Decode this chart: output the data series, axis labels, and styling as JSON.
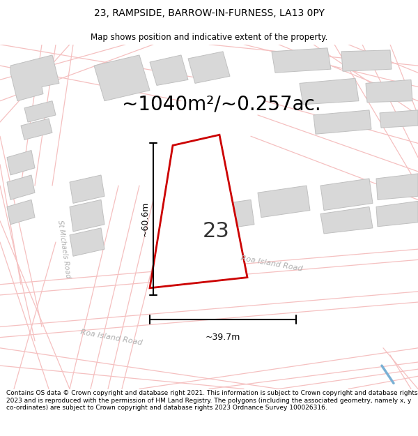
{
  "title": "23, RAMPSIDE, BARROW-IN-FURNESS, LA13 0PY",
  "subtitle": "Map shows position and indicative extent of the property.",
  "area_label": "~1040m²/~0.257ac.",
  "plot_number": "23",
  "width_label": "~39.7m",
  "height_label": "~60.6m",
  "footer": "Contains OS data © Crown copyright and database right 2021. This information is subject to Crown copyright and database rights 2023 and is reproduced with the permission of HM Land Registry. The polygons (including the associated geometry, namely x, y co-ordinates) are subject to Crown copyright and database rights 2023 Ordnance Survey 100026316.",
  "bg_color": "#ffffff",
  "map_bg": "#ffffff",
  "road_line_color": "#f5c0c0",
  "building_face": "#d8d8d8",
  "building_edge": "#c0c0c0",
  "plot_fill": "#ffffff",
  "plot_edge": "#cc0000",
  "dim_color": "#000000",
  "road_label_color": "#b0b0b0",
  "title_fontsize": 10,
  "subtitle_fontsize": 8.5,
  "area_fontsize": 20,
  "plot_num_fontsize": 22,
  "dim_fontsize": 9,
  "footer_fontsize": 6.5
}
